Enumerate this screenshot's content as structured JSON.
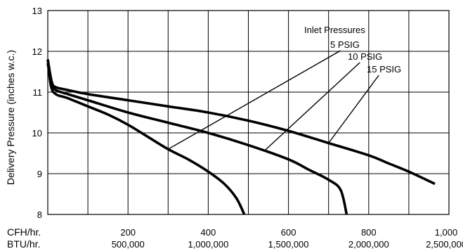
{
  "chart_data": {
    "type": "line",
    "title": "",
    "ylabel": "Delivery Pressure (inches w.c.)",
    "xlabel": "",
    "xlim": [
      0,
      1000
    ],
    "ylim": [
      8,
      13
    ],
    "grid": true,
    "x_row_label": "CFH/hr.",
    "x2_row_label": "BTU/hr.",
    "x_ticks": [
      200,
      400,
      600,
      800,
      1000
    ],
    "x_tick_labels": [
      "200",
      "400",
      "600",
      "800",
      "1,000"
    ],
    "x2_tick_labels": [
      "500,000",
      "1,000,000",
      "1,500,000",
      "2,000,000",
      "2,500,000"
    ],
    "y_ticks": [
      8,
      9,
      10,
      11,
      12,
      13
    ],
    "y_tick_labels": [
      "8",
      "9",
      "10",
      "11",
      "12",
      "13"
    ],
    "legend_title": "Inlet Pressures",
    "series": [
      {
        "name": "5 PSIG",
        "x": [
          0,
          8,
          20,
          50,
          100,
          150,
          200,
          250,
          300,
          350,
          400,
          440,
          470,
          490
        ],
        "y": [
          11.8,
          11.15,
          10.95,
          10.85,
          10.65,
          10.45,
          10.2,
          9.9,
          9.6,
          9.35,
          9.05,
          8.75,
          8.4,
          8.0
        ]
      },
      {
        "name": "10 PSIG",
        "x": [
          0,
          10,
          20,
          50,
          100,
          200,
          300,
          400,
          500,
          600,
          650,
          700,
          730,
          745
        ],
        "y": [
          11.7,
          11.2,
          11.05,
          10.95,
          10.8,
          10.5,
          10.25,
          10.0,
          9.7,
          9.35,
          9.1,
          8.85,
          8.6,
          8.0
        ]
      },
      {
        "name": "15 PSIG",
        "x": [
          0,
          10,
          20,
          50,
          100,
          200,
          300,
          400,
          500,
          600,
          700,
          800,
          850,
          900,
          965
        ],
        "y": [
          11.8,
          11.25,
          11.12,
          11.05,
          10.95,
          10.8,
          10.65,
          10.5,
          10.3,
          10.05,
          9.75,
          9.45,
          9.25,
          9.05,
          8.75
        ]
      }
    ]
  }
}
